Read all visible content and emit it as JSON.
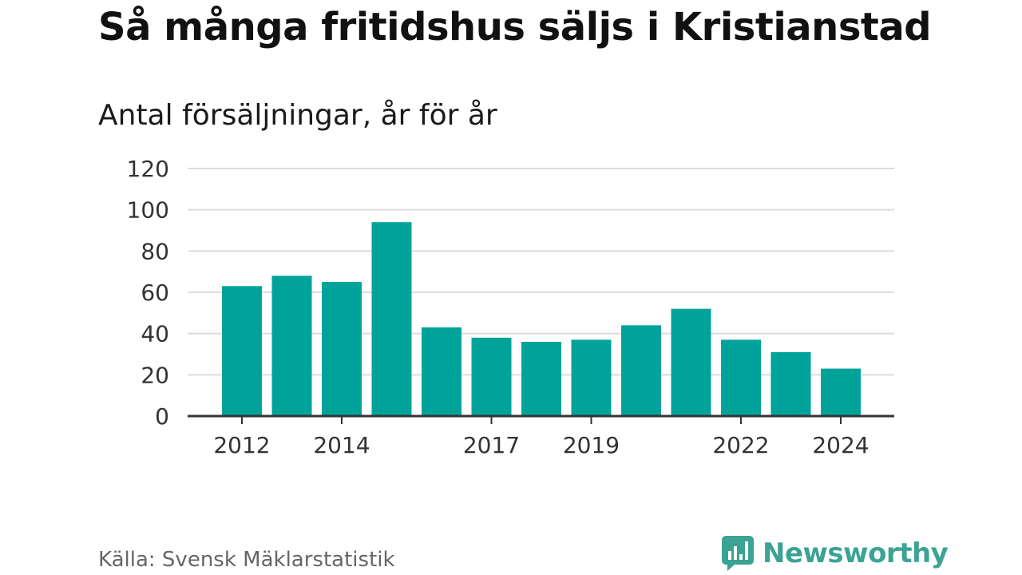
{
  "title": "Så många fritidshus säljs i Kristianstad",
  "subtitle": "Antal försäljningar, år för år",
  "source": "Källa: Svensk Mäklarstatistik",
  "brand": {
    "name": "Newsworthy",
    "icon": "newsworthy-logo-icon",
    "color": "#3aa394"
  },
  "colors": {
    "bar": "#00a39a",
    "grid": "#dcdcdc",
    "axis": "#333333",
    "tick_text": "#333333"
  },
  "chart_data": {
    "type": "bar",
    "categories": [
      "2012",
      "2013",
      "2014",
      "2015",
      "2016",
      "2017",
      "2018",
      "2019",
      "2020",
      "2021",
      "2022",
      "2023",
      "2024"
    ],
    "values": [
      63,
      68,
      65,
      94,
      43,
      38,
      36,
      37,
      44,
      52,
      37,
      31,
      23
    ],
    "x_tick_labels": [
      "2012",
      "2014",
      "2017",
      "2019",
      "2022",
      "2024"
    ],
    "y_ticks": [
      0,
      20,
      40,
      60,
      80,
      100,
      120
    ],
    "ylim": [
      0,
      120
    ],
    "grid": true,
    "legend": "none"
  }
}
